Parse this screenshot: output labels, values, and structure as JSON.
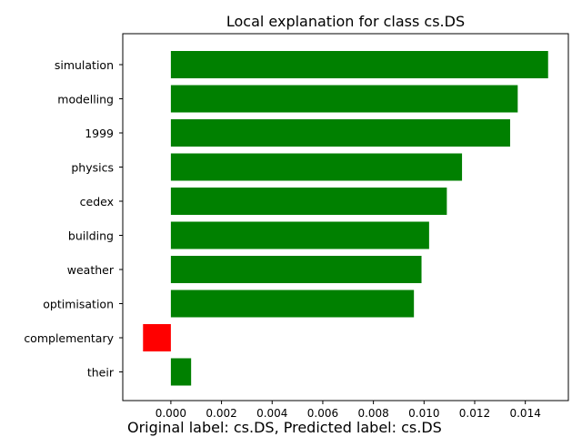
{
  "chart_data": {
    "type": "bar",
    "orientation": "horizontal",
    "title": "Local explanation for class cs.DS",
    "caption": "Original label: cs.DS, Predicted label: cs.DS",
    "xlabel": "",
    "ylabel": "",
    "categories": [
      "simulation",
      "modelling",
      "1999",
      "physics",
      "cedex",
      "building",
      "weather",
      "optimisation",
      "complementary",
      "their"
    ],
    "values": [
      0.0149,
      0.0137,
      0.0134,
      0.0115,
      0.0109,
      0.0102,
      0.0099,
      0.0096,
      -0.0011,
      0.0008
    ],
    "xlim": [
      -0.0019,
      0.0157
    ],
    "xticks": [
      0.0,
      0.002,
      0.004,
      0.006,
      0.008,
      0.01,
      0.012,
      0.014
    ],
    "xtick_labels": [
      "0.000",
      "0.002",
      "0.004",
      "0.006",
      "0.008",
      "0.010",
      "0.012",
      "0.014"
    ],
    "grid": false,
    "colors": {
      "positive": "#008000",
      "negative": "#ff0000",
      "axis": "#000000"
    }
  }
}
